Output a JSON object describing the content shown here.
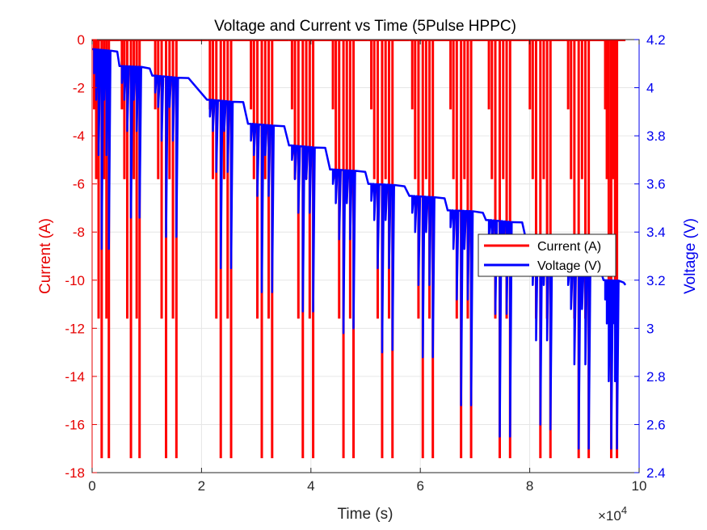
{
  "chart_data": {
    "type": "line",
    "title": "Voltage and Current vs Time (5Pulse HPPC)",
    "xlabel": "Time (s)",
    "x_exponent_label": "×10",
    "x_exponent_power": "4",
    "x_scale": 10000,
    "xlim": [
      0,
      10
    ],
    "x_ticks": [
      0,
      2,
      4,
      6,
      8,
      10
    ],
    "ylabel_left": "Current (A)",
    "ylabel_right": "Voltage (V)",
    "ylim_left": [
      -18,
      0
    ],
    "ylim_right": [
      2.4,
      4.2
    ],
    "y_ticks_left": [
      0,
      -2,
      -4,
      -6,
      -8,
      -10,
      -12,
      -14,
      -16,
      -18
    ],
    "y_ticks_right": [
      4.2,
      4,
      3.8,
      3.6,
      3.4,
      3.2,
      3,
      2.8,
      2.6,
      2.4
    ],
    "grid": true,
    "legend_position": "right",
    "colors": {
      "current": "#ff0000",
      "voltage": "#0000ff",
      "axis_left": "#e60000",
      "axis_right": "#0000ee"
    },
    "series": [
      {
        "name": "Current (A)",
        "axis": "left",
        "color": "#ff0000"
      },
      {
        "name": "Voltage (V)",
        "axis": "right",
        "color": "#0000ff"
      }
    ],
    "pulse_currents": [
      -2.9,
      -5.8,
      -11.6,
      -17.4,
      -5.8,
      -11.6,
      -17.4
    ],
    "soc_blocks": [
      {
        "start": 0.0,
        "rest_voltage": 4.16,
        "pulse_voltages": [
          4.06,
          3.95,
          3.72,
          3.33,
          3.95,
          3.72,
          3.33
        ]
      },
      {
        "start": 0.5,
        "rest_voltage": 4.09,
        "pulse_voltages": [
          4.02,
          3.95,
          3.82,
          3.46,
          3.95,
          3.82,
          3.46
        ]
      },
      {
        "start": 1.1,
        "rest_voltage": 4.05,
        "pulse_voltages": [
          3.98,
          3.92,
          3.78,
          3.38,
          3.92,
          3.78,
          3.38
        ]
      },
      {
        "start": 2.1,
        "rest_voltage": 3.95,
        "pulse_voltages": [
          3.88,
          3.82,
          3.65,
          3.25,
          3.82,
          3.65,
          3.25
        ]
      },
      {
        "start": 2.85,
        "rest_voltage": 3.85,
        "pulse_voltages": [
          3.78,
          3.72,
          3.55,
          3.15,
          3.72,
          3.55,
          3.15
        ]
      },
      {
        "start": 3.6,
        "rest_voltage": 3.76,
        "pulse_voltages": [
          3.7,
          3.62,
          3.48,
          3.07,
          3.62,
          3.48,
          3.07
        ]
      },
      {
        "start": 4.35,
        "rest_voltage": 3.66,
        "pulse_voltages": [
          3.6,
          3.52,
          3.37,
          2.98,
          3.52,
          3.37,
          3.0
        ]
      },
      {
        "start": 5.05,
        "rest_voltage": 3.6,
        "pulse_voltages": [
          3.53,
          3.45,
          3.25,
          2.9,
          3.45,
          3.25,
          2.91
        ]
      },
      {
        "start": 5.8,
        "rest_voltage": 3.55,
        "pulse_voltages": [
          3.48,
          3.4,
          3.18,
          2.88,
          3.4,
          3.18,
          2.88
        ]
      },
      {
        "start": 6.5,
        "rest_voltage": 3.49,
        "pulse_voltages": [
          3.42,
          3.33,
          3.12,
          2.68,
          3.33,
          3.12,
          2.68
        ]
      },
      {
        "start": 7.2,
        "rest_voltage": 3.45,
        "pulse_voltages": [
          3.38,
          3.28,
          3.06,
          2.55,
          3.28,
          3.06,
          2.55
        ]
      },
      {
        "start": 7.95,
        "rest_voltage": 3.35,
        "pulse_voltages": [
          3.28,
          3.18,
          2.95,
          2.6,
          3.18,
          2.95,
          2.58
        ]
      },
      {
        "start": 8.65,
        "rest_voltage": 3.25,
        "pulse_voltages": [
          3.18,
          3.08,
          2.85,
          2.5,
          3.08,
          2.85,
          2.5
        ]
      },
      {
        "start": 9.35,
        "rest_voltage": 3.2,
        "pulse_voltages": [
          3.12,
          3.02,
          2.78,
          2.5,
          3.02,
          2.78,
          2.5
        ]
      }
    ],
    "end_time": 9.75
  }
}
